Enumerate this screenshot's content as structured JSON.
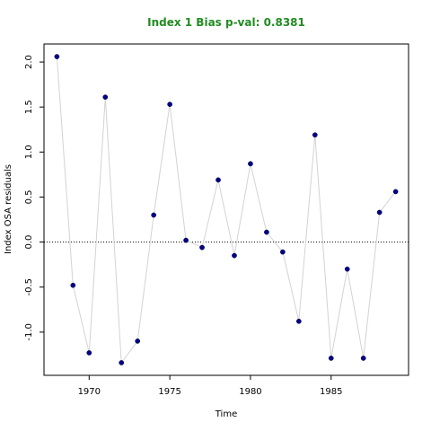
{
  "chart_data": {
    "type": "scatter",
    "title": "Index 1 Bias p-val: 0.8381",
    "title_color": "#228B22",
    "xlabel": "Time",
    "ylabel": "Index OSA residuals",
    "xlim": [
      1967.2,
      1989.8
    ],
    "ylim": [
      -1.48,
      2.2
    ],
    "x_ticks": [
      1970,
      1975,
      1980,
      1985
    ],
    "y_ticks": [
      -1.0,
      -0.5,
      0.0,
      0.5,
      1.0,
      1.5,
      2.0
    ],
    "y_tick_labels": [
      "-1.0",
      "-0.5",
      "0.0",
      "0.5",
      "1.0",
      "1.5",
      "2.0"
    ],
    "reference_line": {
      "y": 0,
      "style": "dotted"
    },
    "grid": false,
    "series": [
      {
        "line_color": "#d3d3d3",
        "point_color": "#00008b",
        "x": [
          1968,
          1969,
          1970,
          1971,
          1972,
          1973,
          1974,
          1975,
          1976,
          1977,
          1978,
          1979,
          1980,
          1981,
          1982,
          1983,
          1984,
          1985,
          1986,
          1987,
          1988,
          1989
        ],
        "y": [
          2.06,
          -0.48,
          -1.23,
          1.61,
          -1.34,
          -1.1,
          0.3,
          1.53,
          0.02,
          -0.06,
          0.69,
          -0.15,
          0.87,
          0.11,
          -0.11,
          -0.88,
          1.19,
          -1.29,
          -0.3,
          -1.29,
          0.33,
          0.56
        ]
      }
    ]
  }
}
